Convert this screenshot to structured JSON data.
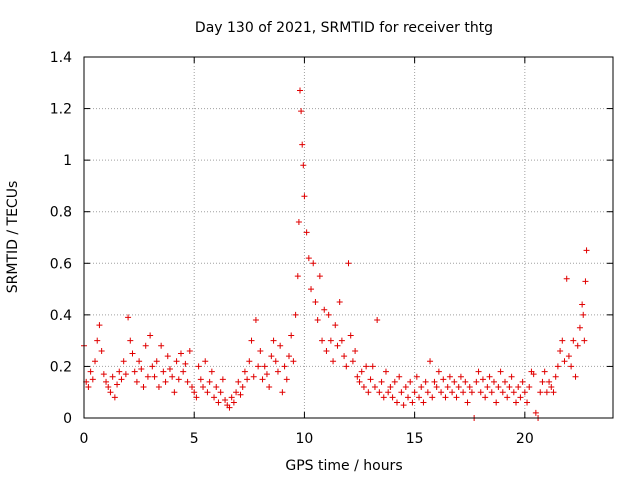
{
  "chart_data": {
    "type": "scatter",
    "title": "Day 130 of 2021, SRMTID for receiver thtg",
    "xlabel": "GPS time / hours",
    "ylabel": "SRMTID / TECUs",
    "xlim": [
      0,
      24
    ],
    "ylim": [
      0,
      1.4
    ],
    "xticks": [
      0,
      5,
      10,
      15,
      20
    ],
    "yticks": [
      0,
      0.2,
      0.4,
      0.6,
      0.8,
      1,
      1.2,
      1.4
    ],
    "xtick_labels": [
      "0",
      "5",
      "10",
      "15",
      "20"
    ],
    "ytick_labels": [
      "0",
      "0.2",
      "0.4",
      "0.6",
      "0.8",
      "1",
      "1.2",
      "1.4"
    ],
    "grid": true,
    "marker": "plus",
    "color": "#e00000",
    "series": [
      {
        "name": "SRMTID",
        "points": [
          [
            0.0,
            0.28
          ],
          [
            0.1,
            0.14
          ],
          [
            0.2,
            0.12
          ],
          [
            0.3,
            0.18
          ],
          [
            0.4,
            0.15
          ],
          [
            0.5,
            0.22
          ],
          [
            0.6,
            0.3
          ],
          [
            0.7,
            0.36
          ],
          [
            0.8,
            0.26
          ],
          [
            0.9,
            0.17
          ],
          [
            1.0,
            0.14
          ],
          [
            1.1,
            0.12
          ],
          [
            1.2,
            0.1
          ],
          [
            1.3,
            0.16
          ],
          [
            1.4,
            0.08
          ],
          [
            1.5,
            0.13
          ],
          [
            1.6,
            0.18
          ],
          [
            1.7,
            0.15
          ],
          [
            1.8,
            0.22
          ],
          [
            1.9,
            0.17
          ],
          [
            2.0,
            0.39
          ],
          [
            2.1,
            0.3
          ],
          [
            2.2,
            0.25
          ],
          [
            2.3,
            0.18
          ],
          [
            2.4,
            0.14
          ],
          [
            2.5,
            0.22
          ],
          [
            2.6,
            0.19
          ],
          [
            2.7,
            0.12
          ],
          [
            2.8,
            0.28
          ],
          [
            2.9,
            0.16
          ],
          [
            3.0,
            0.32
          ],
          [
            3.1,
            0.2
          ],
          [
            3.2,
            0.16
          ],
          [
            3.3,
            0.22
          ],
          [
            3.4,
            0.12
          ],
          [
            3.5,
            0.28
          ],
          [
            3.6,
            0.18
          ],
          [
            3.7,
            0.14
          ],
          [
            3.8,
            0.24
          ],
          [
            3.9,
            0.19
          ],
          [
            4.0,
            0.16
          ],
          [
            4.1,
            0.1
          ],
          [
            4.2,
            0.22
          ],
          [
            4.3,
            0.15
          ],
          [
            4.4,
            0.25
          ],
          [
            4.5,
            0.18
          ],
          [
            4.6,
            0.21
          ],
          [
            4.7,
            0.14
          ],
          [
            4.8,
            0.26
          ],
          [
            4.9,
            0.12
          ],
          [
            5.0,
            0.1
          ],
          [
            5.1,
            0.08
          ],
          [
            5.2,
            0.2
          ],
          [
            5.3,
            0.15
          ],
          [
            5.4,
            0.12
          ],
          [
            5.5,
            0.22
          ],
          [
            5.6,
            0.1
          ],
          [
            5.7,
            0.14
          ],
          [
            5.8,
            0.18
          ],
          [
            5.9,
            0.08
          ],
          [
            6.0,
            0.12
          ],
          [
            6.1,
            0.06
          ],
          [
            6.2,
            0.1
          ],
          [
            6.3,
            0.15
          ],
          [
            6.4,
            0.07
          ],
          [
            6.5,
            0.05
          ],
          [
            6.6,
            0.04
          ],
          [
            6.7,
            0.08
          ],
          [
            6.8,
            0.06
          ],
          [
            6.9,
            0.1
          ],
          [
            7.0,
            0.14
          ],
          [
            7.1,
            0.09
          ],
          [
            7.2,
            0.12
          ],
          [
            7.3,
            0.18
          ],
          [
            7.4,
            0.15
          ],
          [
            7.5,
            0.22
          ],
          [
            7.6,
            0.3
          ],
          [
            7.7,
            0.16
          ],
          [
            7.8,
            0.38
          ],
          [
            7.9,
            0.2
          ],
          [
            8.0,
            0.26
          ],
          [
            8.1,
            0.15
          ],
          [
            8.2,
            0.2
          ],
          [
            8.3,
            0.17
          ],
          [
            8.4,
            0.12
          ],
          [
            8.5,
            0.24
          ],
          [
            8.6,
            0.3
          ],
          [
            8.7,
            0.22
          ],
          [
            8.8,
            0.18
          ],
          [
            8.9,
            0.28
          ],
          [
            9.0,
            0.1
          ],
          [
            9.1,
            0.2
          ],
          [
            9.2,
            0.15
          ],
          [
            9.3,
            0.24
          ],
          [
            9.4,
            0.32
          ],
          [
            9.5,
            0.22
          ],
          [
            9.6,
            0.4
          ],
          [
            9.7,
            0.55
          ],
          [
            9.75,
            0.76
          ],
          [
            9.8,
            1.27
          ],
          [
            9.85,
            1.19
          ],
          [
            9.9,
            1.06
          ],
          [
            9.95,
            0.98
          ],
          [
            10.0,
            0.86
          ],
          [
            10.1,
            0.72
          ],
          [
            10.2,
            0.62
          ],
          [
            10.3,
            0.5
          ],
          [
            10.4,
            0.6
          ],
          [
            10.5,
            0.45
          ],
          [
            10.6,
            0.38
          ],
          [
            10.7,
            0.55
          ],
          [
            10.8,
            0.3
          ],
          [
            10.9,
            0.42
          ],
          [
            11.0,
            0.26
          ],
          [
            11.1,
            0.4
          ],
          [
            11.2,
            0.3
          ],
          [
            11.3,
            0.22
          ],
          [
            11.4,
            0.36
          ],
          [
            11.5,
            0.28
          ],
          [
            11.6,
            0.45
          ],
          [
            11.7,
            0.3
          ],
          [
            11.8,
            0.24
          ],
          [
            11.9,
            0.2
          ],
          [
            12.0,
            0.6
          ],
          [
            12.1,
            0.32
          ],
          [
            12.2,
            0.22
          ],
          [
            12.3,
            0.26
          ],
          [
            12.4,
            0.16
          ],
          [
            12.5,
            0.14
          ],
          [
            12.6,
            0.18
          ],
          [
            12.7,
            0.12
          ],
          [
            12.8,
            0.2
          ],
          [
            12.9,
            0.1
          ],
          [
            13.0,
            0.15
          ],
          [
            13.1,
            0.2
          ],
          [
            13.2,
            0.12
          ],
          [
            13.3,
            0.38
          ],
          [
            13.4,
            0.1
          ],
          [
            13.5,
            0.14
          ],
          [
            13.6,
            0.08
          ],
          [
            13.7,
            0.18
          ],
          [
            13.8,
            0.1
          ],
          [
            13.9,
            0.12
          ],
          [
            14.0,
            0.08
          ],
          [
            14.1,
            0.14
          ],
          [
            14.2,
            0.06
          ],
          [
            14.3,
            0.16
          ],
          [
            14.4,
            0.1
          ],
          [
            14.5,
            0.05
          ],
          [
            14.6,
            0.12
          ],
          [
            14.7,
            0.08
          ],
          [
            14.8,
            0.14
          ],
          [
            14.9,
            0.06
          ],
          [
            15.0,
            0.1
          ],
          [
            15.1,
            0.16
          ],
          [
            15.2,
            0.08
          ],
          [
            15.3,
            0.12
          ],
          [
            15.4,
            0.06
          ],
          [
            15.5,
            0.14
          ],
          [
            15.6,
            0.1
          ],
          [
            15.7,
            0.22
          ],
          [
            15.8,
            0.08
          ],
          [
            15.9,
            0.14
          ],
          [
            16.0,
            0.12
          ],
          [
            16.1,
            0.18
          ],
          [
            16.2,
            0.1
          ],
          [
            16.3,
            0.15
          ],
          [
            16.4,
            0.08
          ],
          [
            16.5,
            0.12
          ],
          [
            16.6,
            0.16
          ],
          [
            16.7,
            0.1
          ],
          [
            16.8,
            0.14
          ],
          [
            16.9,
            0.08
          ],
          [
            17.0,
            0.12
          ],
          [
            17.1,
            0.16
          ],
          [
            17.2,
            0.1
          ],
          [
            17.3,
            0.14
          ],
          [
            17.4,
            0.06
          ],
          [
            17.5,
            0.12
          ],
          [
            17.6,
            0.1
          ],
          [
            17.7,
            0.0
          ],
          [
            17.8,
            0.14
          ],
          [
            17.9,
            0.18
          ],
          [
            18.0,
            0.1
          ],
          [
            18.1,
            0.15
          ],
          [
            18.2,
            0.08
          ],
          [
            18.3,
            0.12
          ],
          [
            18.4,
            0.16
          ],
          [
            18.5,
            0.1
          ],
          [
            18.6,
            0.14
          ],
          [
            18.7,
            0.06
          ],
          [
            18.8,
            0.12
          ],
          [
            18.9,
            0.18
          ],
          [
            19.0,
            0.1
          ],
          [
            19.1,
            0.14
          ],
          [
            19.2,
            0.08
          ],
          [
            19.3,
            0.12
          ],
          [
            19.4,
            0.16
          ],
          [
            19.5,
            0.1
          ],
          [
            19.6,
            0.06
          ],
          [
            19.7,
            0.12
          ],
          [
            19.8,
            0.08
          ],
          [
            19.9,
            0.14
          ],
          [
            20.0,
            0.1
          ],
          [
            20.1,
            0.06
          ],
          [
            20.2,
            0.12
          ],
          [
            20.3,
            0.18
          ],
          [
            20.4,
            0.17
          ],
          [
            20.5,
            0.02
          ],
          [
            20.6,
            0.0
          ],
          [
            20.7,
            0.1
          ],
          [
            20.8,
            0.14
          ],
          [
            20.9,
            0.18
          ],
          [
            21.0,
            0.1
          ],
          [
            21.1,
            0.14
          ],
          [
            21.2,
            0.12
          ],
          [
            21.3,
            0.1
          ],
          [
            21.4,
            0.16
          ],
          [
            21.5,
            0.2
          ],
          [
            21.6,
            0.26
          ],
          [
            21.7,
            0.3
          ],
          [
            21.8,
            0.22
          ],
          [
            21.9,
            0.54
          ],
          [
            22.0,
            0.24
          ],
          [
            22.1,
            0.2
          ],
          [
            22.2,
            0.3
          ],
          [
            22.3,
            0.16
          ],
          [
            22.4,
            0.28
          ],
          [
            22.5,
            0.35
          ],
          [
            22.6,
            0.44
          ],
          [
            22.65,
            0.4
          ],
          [
            22.7,
            0.3
          ],
          [
            22.75,
            0.53
          ],
          [
            22.8,
            0.65
          ]
        ]
      }
    ]
  }
}
